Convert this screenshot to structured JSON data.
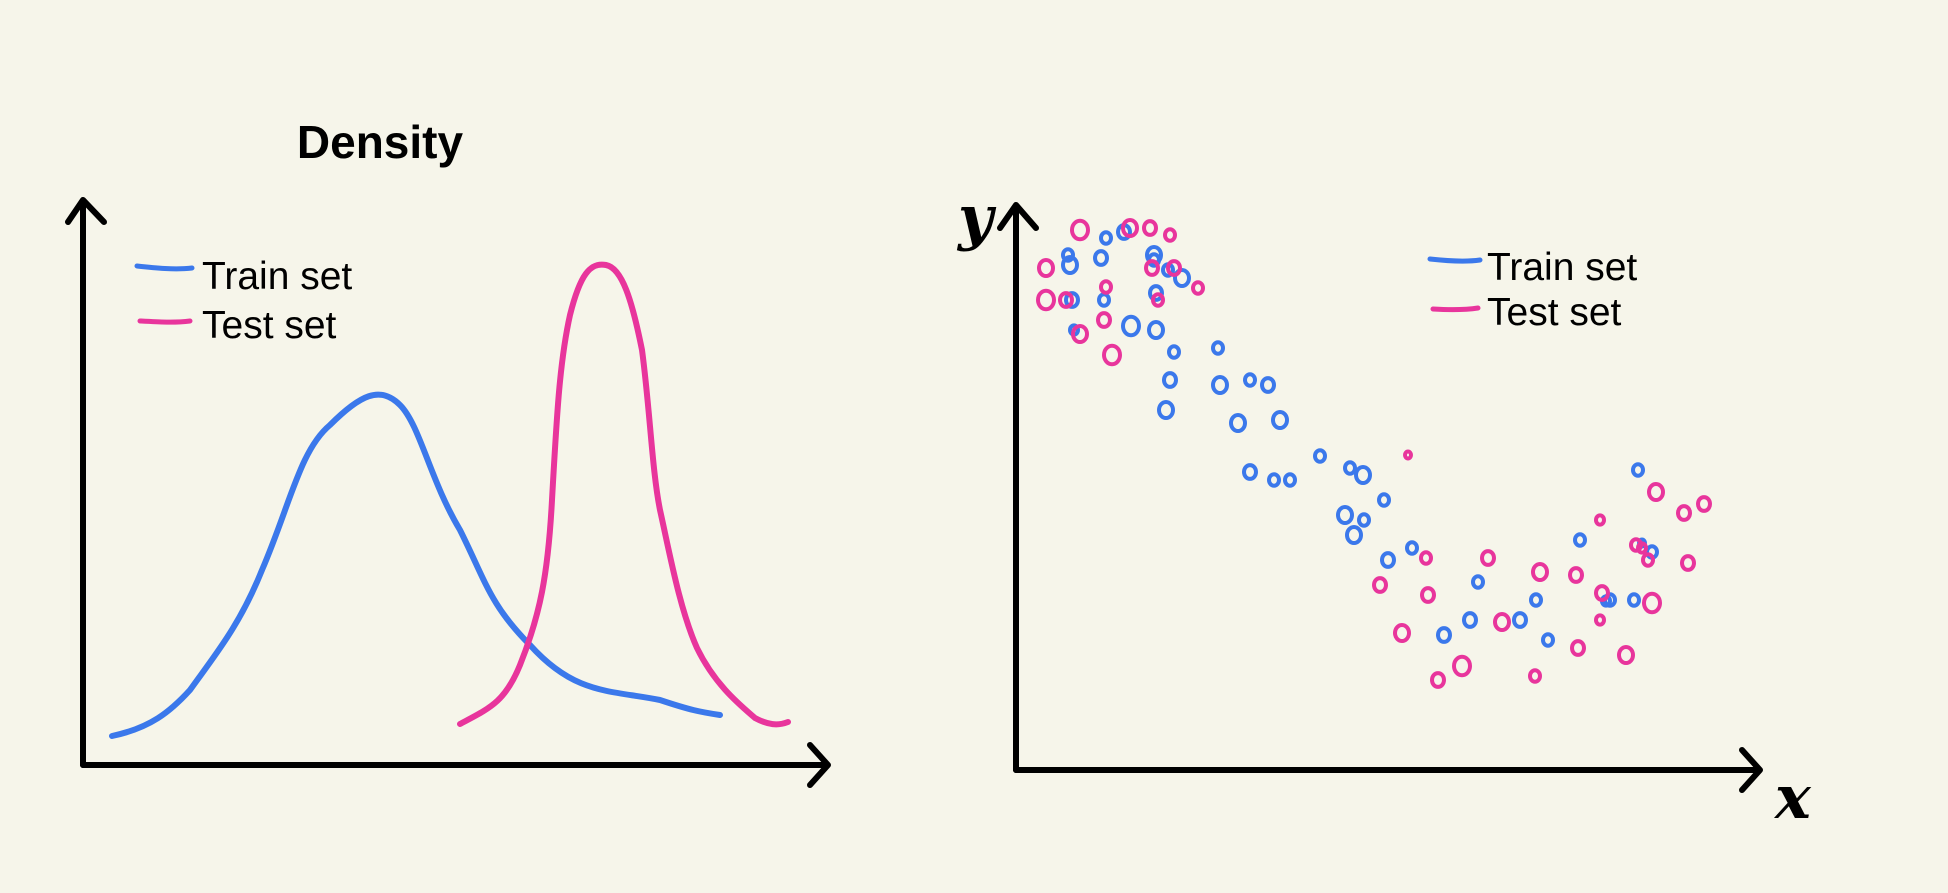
{
  "colors": {
    "train": "#3b78eb",
    "test": "#e8359c",
    "axis": "#000000",
    "background": "#f6f5ea"
  },
  "density_panel": {
    "title": "Density",
    "legend": {
      "train_label": "Train set",
      "test_label": "Test set"
    }
  },
  "scatter_panel": {
    "y_axis_label": "y",
    "x_axis_label": "x",
    "legend": {
      "train_label": "Train set",
      "test_label": "Test set"
    }
  }
}
